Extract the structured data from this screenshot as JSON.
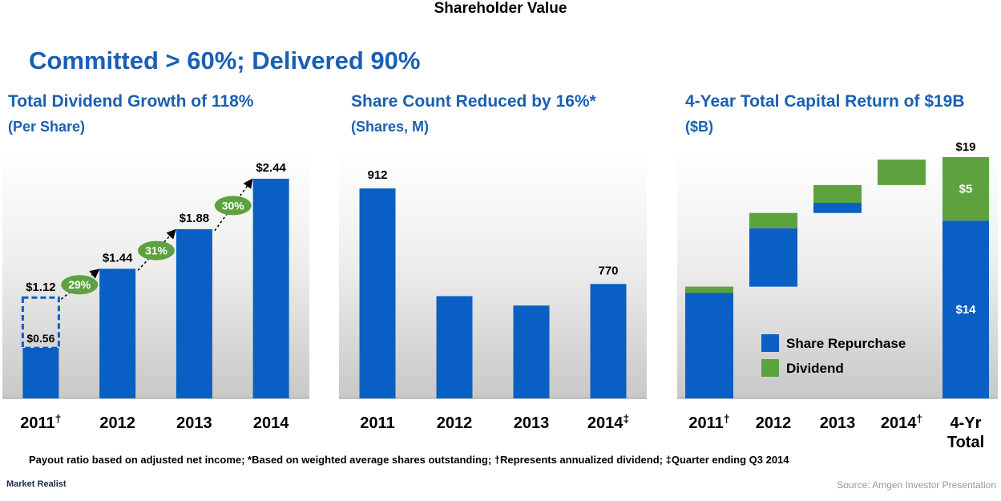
{
  "header": {
    "top_title": "Shareholder Value",
    "headline": "Committed > 60%; Delivered 90%"
  },
  "chart_data": [
    {
      "type": "bar",
      "title": "Total Dividend Growth of 118%",
      "subtitle": "(Per Share)",
      "categories": [
        "2011",
        "2012",
        "2013",
        "2014"
      ],
      "category_marks": [
        "†",
        "",
        "",
        ""
      ],
      "values": [
        1.12,
        1.44,
        1.88,
        2.44
      ],
      "value_labels": [
        "$1.12",
        "$1.44",
        "$1.88",
        "$2.44"
      ],
      "actual_2011_value": 0.56,
      "actual_2011_label": "$0.56",
      "growth_labels": [
        "29%",
        "31%",
        "30%"
      ],
      "ylim": [
        0,
        2.6
      ],
      "colors": {
        "bar": "#0a5fc4",
        "growth": "#5ea13f"
      }
    },
    {
      "type": "bar",
      "title": "Share Count Reduced by 16%*",
      "subtitle": "(Shares, M)",
      "categories": [
        "2011",
        "2012",
        "2013",
        "2014"
      ],
      "category_marks": [
        "",
        "",
        "",
        "‡"
      ],
      "values": [
        912,
        752,
        738,
        770
      ],
      "value_labels": [
        "912",
        "",
        "",
        "770"
      ],
      "ylim": [
        600,
        930
      ],
      "colors": {
        "bar": "#0a5fc4"
      }
    },
    {
      "type": "bar",
      "title": "4-Year Total Capital Return of $19B",
      "subtitle": "($B)",
      "categories": [
        "2011",
        "2012",
        "2013",
        "2014",
        "4-Yr\nTotal"
      ],
      "category_marks": [
        "†",
        "",
        "",
        "†",
        ""
      ],
      "series": [
        {
          "name": "Share Repurchase",
          "values": [
            8.3,
            4.6,
            0.8,
            0.0,
            14
          ]
        },
        {
          "name": "Dividend",
          "values": [
            0.5,
            1.2,
            1.4,
            2.0,
            5
          ]
        }
      ],
      "total_label": "$19",
      "segment_labels": {
        "repurchase": "$14",
        "dividend": "$5"
      },
      "ylim": [
        0,
        19
      ],
      "legend": "bottom-right",
      "colors": {
        "repurchase": "#0a5fc4",
        "dividend": "#5ea13f"
      }
    }
  ],
  "footnote": "Payout ratio based on adjusted net income; *Based on weighted average shares outstanding; †Represents annualized dividend; ‡Quarter ending Q3 2014",
  "brand": "Market Realist",
  "source": "Source: Amgen Investor Presentation"
}
